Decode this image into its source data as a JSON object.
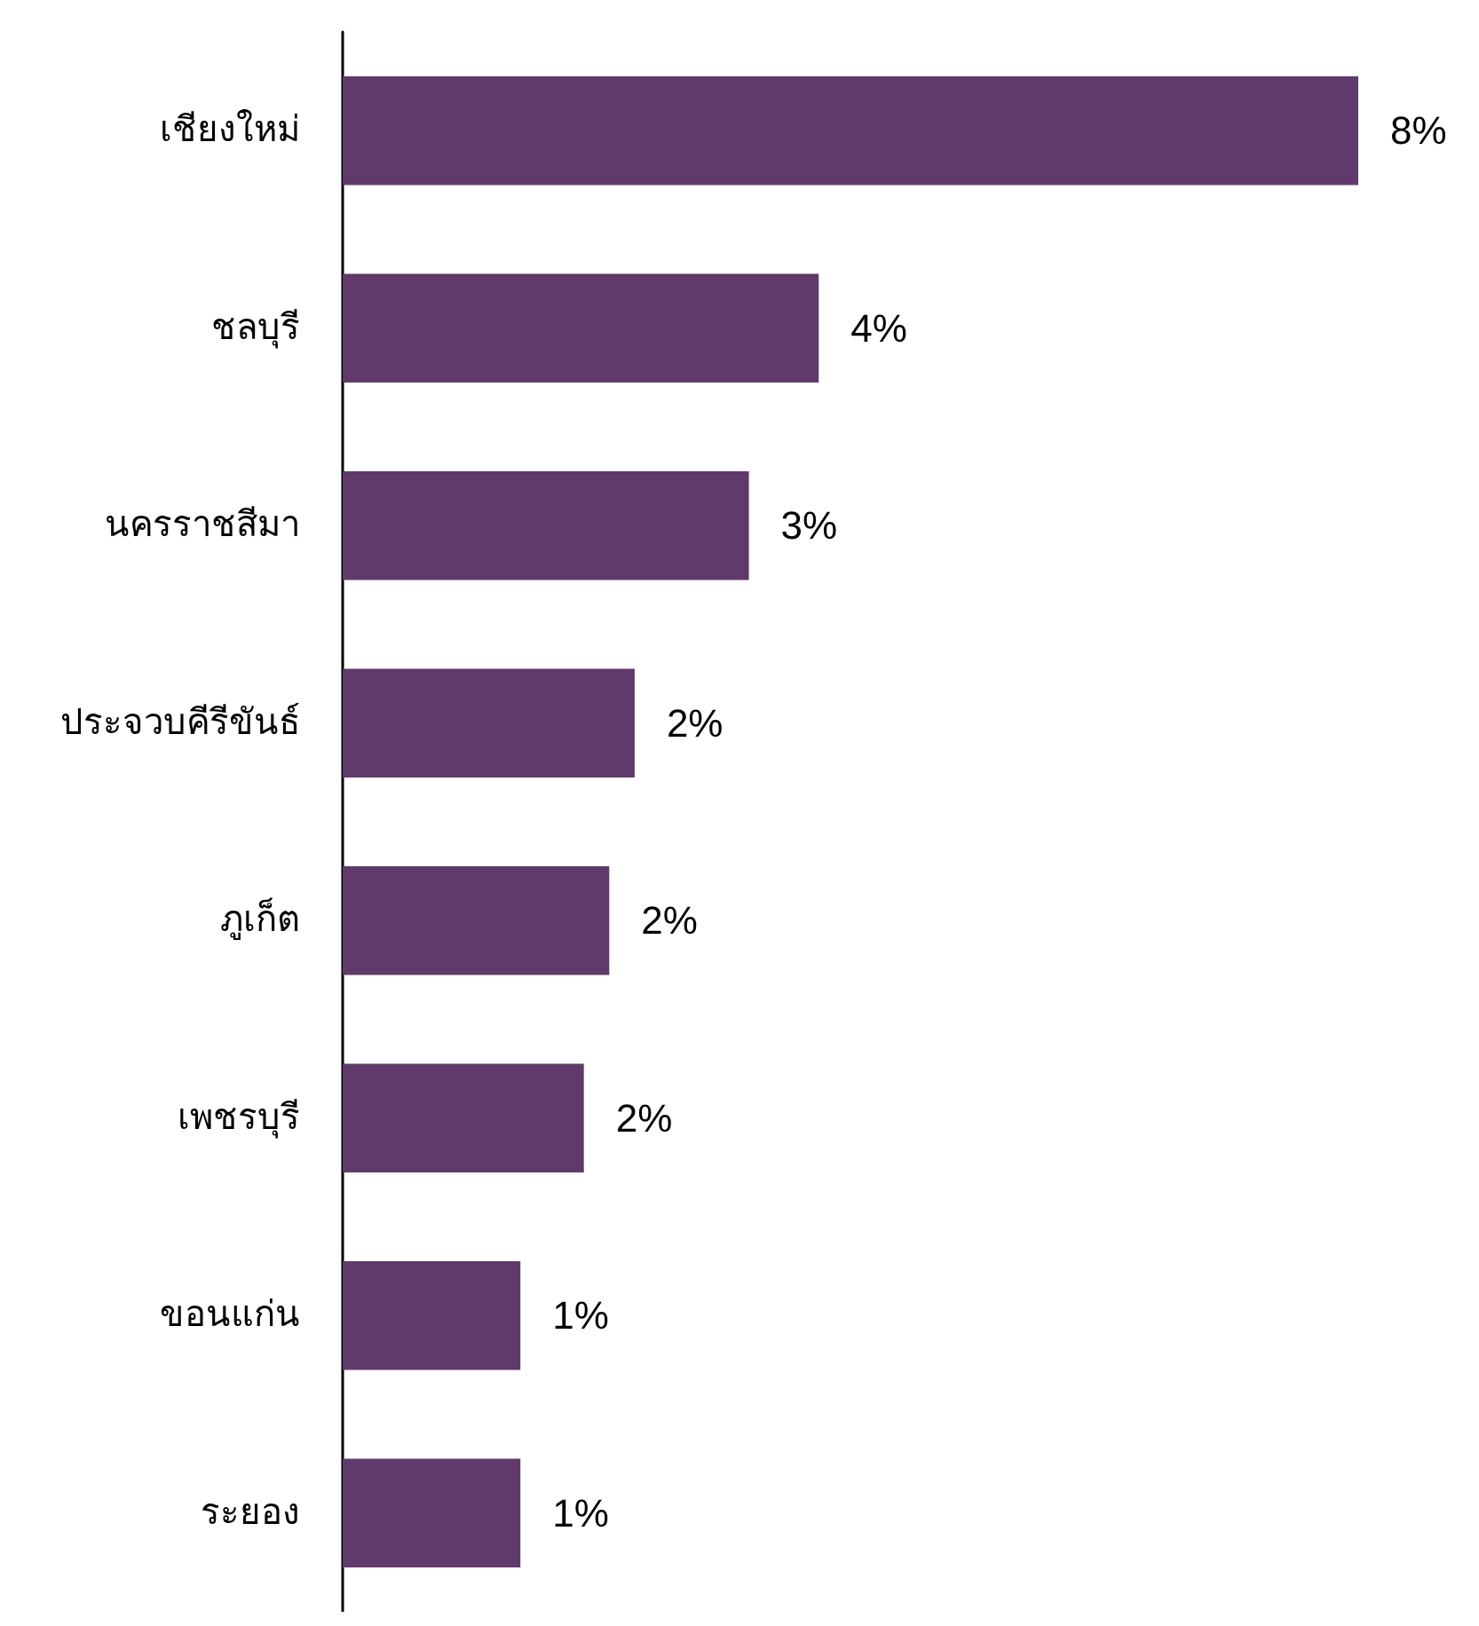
{
  "chart_data": {
    "type": "bar",
    "orientation": "horizontal",
    "categories": [
      "เชียงใหม่",
      "ชลบุรี",
      "นครราชสีมา",
      "ประจวบคีรีขันธ์",
      "ภูเก็ต",
      "เพชรบุรี",
      "ขอนแก่น",
      "ระยอง"
    ],
    "values": [
      8,
      3.75,
      3.2,
      2.3,
      2.1,
      1.9,
      1.4,
      1.4
    ],
    "value_labels": [
      "8%",
      "4%",
      "3%",
      "2%",
      "2%",
      "2%",
      "1%",
      "1%"
    ],
    "color": "#603a6b"
  }
}
